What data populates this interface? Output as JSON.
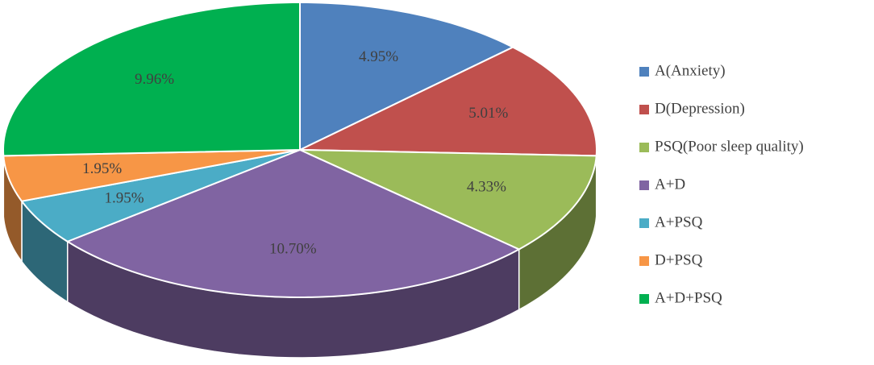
{
  "chart_data": {
    "type": "pie",
    "categories": [
      "A(Anxiety)",
      "D(Depression)",
      "PSQ(Poor sleep quality)",
      "A+D",
      "A+PSQ",
      "D+PSQ",
      "A+D+PSQ"
    ],
    "values": [
      4.95,
      5.01,
      4.33,
      10.7,
      1.95,
      1.95,
      9.96
    ],
    "value_labels": [
      "4.95%",
      "5.01%",
      "4.33%",
      "10.70%",
      "1.95%",
      "1.95%",
      "9.96%"
    ],
    "colors": [
      "#4f81bd",
      "#c0504d",
      "#9bbb59",
      "#8064a2",
      "#4bacc6",
      "#f79646",
      "#00b050"
    ],
    "legend": "right"
  }
}
